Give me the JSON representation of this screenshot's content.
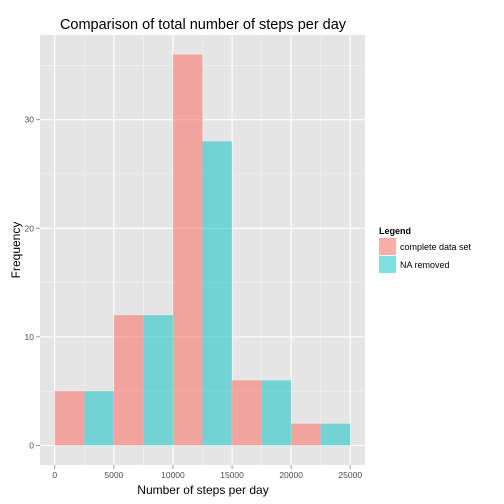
{
  "chart_data": {
    "type": "bar",
    "title": "Comparison of total number of steps per day",
    "xlabel": "Number of steps per day",
    "ylabel": "Frequency",
    "xlim": [
      -1250,
      26250
    ],
    "ylim": [
      -1.8,
      37.8
    ],
    "x_ticks": [
      0,
      5000,
      10000,
      15000,
      20000,
      25000
    ],
    "y_ticks": [
      0,
      10,
      20,
      30
    ],
    "grid": true,
    "legend": {
      "title": "Legend",
      "position": "right"
    },
    "series": [
      {
        "name": "complete data set",
        "color": "#f8766d",
        "bins": [
          {
            "x0": 0,
            "x1": 2500,
            "value": 5
          },
          {
            "x0": 5000,
            "x1": 7500,
            "value": 12
          },
          {
            "x0": 10000,
            "x1": 12500,
            "value": 36
          },
          {
            "x0": 15000,
            "x1": 17500,
            "value": 6
          },
          {
            "x0": 20000,
            "x1": 22500,
            "value": 2
          }
        ]
      },
      {
        "name": "NA removed",
        "color": "#00bfc4",
        "bins": [
          {
            "x0": 2500,
            "x1": 5000,
            "value": 5
          },
          {
            "x0": 7500,
            "x1": 10000,
            "value": 12
          },
          {
            "x0": 12500,
            "x1": 15000,
            "value": 28
          },
          {
            "x0": 17500,
            "x1": 20000,
            "value": 6
          },
          {
            "x0": 22500,
            "x1": 25000,
            "value": 2
          }
        ]
      }
    ]
  }
}
